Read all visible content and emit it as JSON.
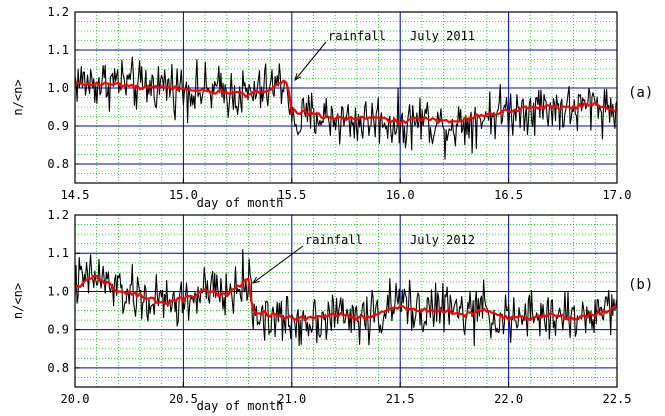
{
  "chart_data": [
    {
      "type": "line",
      "panel_label": "(a)",
      "xlabel": "day of month",
      "ylabel": "n/<n>",
      "xlim": [
        14.5,
        17.0
      ],
      "ylim": [
        0.75,
        1.2
      ],
      "xticks": [
        "14.5",
        "15.0",
        "15.5",
        "16.0",
        "16.5",
        "17.0"
      ],
      "yticks": [
        "0.8",
        "0.9",
        "1.0",
        "1.1",
        "1.2"
      ],
      "annotations": [
        {
          "text": "rainfall",
          "x": 15.5,
          "y": 1.0
        },
        {
          "text": "July 2011"
        }
      ],
      "grid": true,
      "series": [
        {
          "color": "#000000",
          "style": "raw data, high-frequency fluctuation",
          "x": [
            14.5,
            14.6,
            14.7,
            14.8,
            14.9,
            15.0,
            15.1,
            15.2,
            15.3,
            15.4,
            15.48,
            15.5,
            15.6,
            15.7,
            15.8,
            15.9,
            16.0,
            16.1,
            16.2,
            16.3,
            16.4,
            16.5,
            16.6,
            16.7,
            16.8,
            16.9,
            17.0
          ],
          "values": [
            1.02,
            1.01,
            1.02,
            1.0,
            1.01,
            1.0,
            0.99,
            0.99,
            0.98,
            1.0,
            1.02,
            0.9,
            0.93,
            0.92,
            0.91,
            0.92,
            0.9,
            0.92,
            0.9,
            0.91,
            0.93,
            0.94,
            0.95,
            0.95,
            0.94,
            0.96,
            0.94
          ],
          "noise_amplitude": 0.06
        },
        {
          "color": "#ff0000",
          "style": "smoothed",
          "x": [
            14.5,
            14.6,
            14.7,
            14.8,
            14.9,
            15.0,
            15.1,
            15.2,
            15.3,
            15.4,
            15.48,
            15.5,
            15.6,
            15.7,
            15.8,
            15.9,
            16.0,
            16.1,
            16.2,
            16.3,
            16.4,
            16.5,
            16.6,
            16.7,
            16.8,
            16.9,
            17.0
          ],
          "values": [
            1.01,
            1.01,
            1.01,
            1.0,
            1.0,
            1.0,
            0.99,
            0.99,
            0.98,
            1.0,
            1.02,
            0.94,
            0.93,
            0.92,
            0.92,
            0.92,
            0.91,
            0.92,
            0.91,
            0.92,
            0.93,
            0.94,
            0.95,
            0.95,
            0.95,
            0.96,
            0.94
          ]
        }
      ]
    },
    {
      "type": "line",
      "panel_label": "(b)",
      "xlabel": "day of month",
      "ylabel": "n/<n>",
      "xlim": [
        20.0,
        22.5
      ],
      "ylim": [
        0.75,
        1.2
      ],
      "xticks": [
        "20.0",
        "20.5",
        "21.0",
        "21.5",
        "22.0",
        "22.5"
      ],
      "yticks": [
        "0.8",
        "0.9",
        "1.0",
        "1.1",
        "1.2"
      ],
      "annotations": [
        {
          "text": "rainfall",
          "x": 20.82,
          "y": 1.0
        },
        {
          "text": "July 2012"
        }
      ],
      "grid": true,
      "series": [
        {
          "color": "#000000",
          "style": "raw data, high-frequency fluctuation",
          "x": [
            20.0,
            20.1,
            20.2,
            20.3,
            20.4,
            20.5,
            20.6,
            20.7,
            20.8,
            20.82,
            20.9,
            21.0,
            21.1,
            21.2,
            21.3,
            21.4,
            21.5,
            21.6,
            21.7,
            21.8,
            21.9,
            22.0,
            22.1,
            22.2,
            22.3,
            22.4,
            22.5
          ],
          "values": [
            1.02,
            1.04,
            1.0,
            0.98,
            0.97,
            0.97,
            1.0,
            0.99,
            1.03,
            0.95,
            0.93,
            0.92,
            0.93,
            0.94,
            0.93,
            0.94,
            0.97,
            0.95,
            0.96,
            0.94,
            0.95,
            0.92,
            0.93,
            0.94,
            0.93,
            0.94,
            0.97
          ],
          "noise_amplitude": 0.06
        },
        {
          "color": "#ff0000",
          "style": "smoothed",
          "x": [
            20.0,
            20.1,
            20.2,
            20.3,
            20.4,
            20.5,
            20.6,
            20.7,
            20.8,
            20.82,
            20.9,
            21.0,
            21.1,
            21.2,
            21.3,
            21.4,
            21.5,
            21.6,
            21.7,
            21.8,
            21.9,
            22.0,
            22.1,
            22.2,
            22.3,
            22.4,
            22.5
          ],
          "values": [
            1.01,
            1.04,
            1.0,
            0.99,
            0.97,
            0.98,
            1.0,
            0.99,
            1.03,
            0.95,
            0.94,
            0.93,
            0.93,
            0.94,
            0.93,
            0.94,
            0.96,
            0.95,
            0.95,
            0.94,
            0.95,
            0.93,
            0.93,
            0.94,
            0.93,
            0.94,
            0.96
          ]
        }
      ]
    }
  ]
}
